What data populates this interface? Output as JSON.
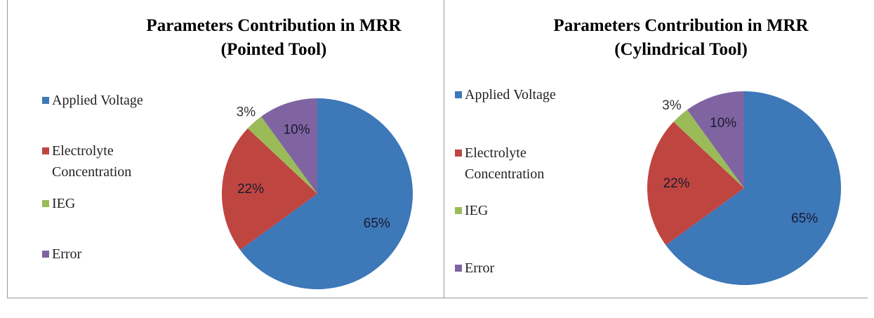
{
  "chart_data": [
    {
      "type": "pie",
      "title": "Parameters Contribution in MRR",
      "subtitle": "(Pointed Tool)",
      "categories": [
        "Applied Voltage",
        "Electrolyte Concentration",
        "IEG",
        "Error"
      ],
      "values": [
        65,
        22,
        3,
        10
      ],
      "value_labels": [
        "65%",
        "22%",
        "3%",
        "10%"
      ],
      "colors": [
        "#3d78b8",
        "#bf4541",
        "#9bbb59",
        "#8064a2"
      ]
    },
    {
      "type": "pie",
      "title": "Parameters Contribution in MRR",
      "subtitle": "(Cylindrical Tool)",
      "categories": [
        "Applied Voltage",
        "Electrolyte Concentration",
        "IEG",
        "Error"
      ],
      "values": [
        65,
        22,
        3,
        10
      ],
      "value_labels": [
        "65%",
        "22%",
        "3%",
        "10%"
      ],
      "colors": [
        "#3d78b8",
        "#bf4541",
        "#9bbb59",
        "#8064a2"
      ]
    }
  ]
}
